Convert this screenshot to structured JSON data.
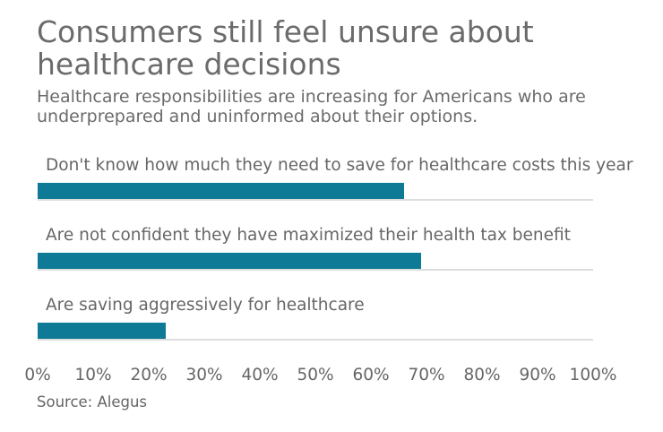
{
  "chart_data": {
    "type": "bar",
    "orientation": "horizontal",
    "title": "Consumers still feel unsure about healthcare decisions",
    "subtitle": "Healthcare responsibilities are increasing for Americans who are underprepared and uninformed about their options.",
    "categories": [
      "Don't know how much they need to save for healthcare costs this year",
      "Are not confident they have maximized their health tax benefit",
      "Are saving aggressively for healthcare"
    ],
    "values": [
      66,
      69,
      23
    ],
    "unit": "%",
    "xlim": [
      0,
      100
    ],
    "tick_labels": [
      "0%",
      "10%",
      "20%",
      "30%",
      "40%",
      "50%",
      "60%",
      "70%",
      "80%",
      "90%",
      "100%"
    ],
    "bar_color": "#0e7a96",
    "grid": false,
    "source": "Source: Alegus"
  }
}
